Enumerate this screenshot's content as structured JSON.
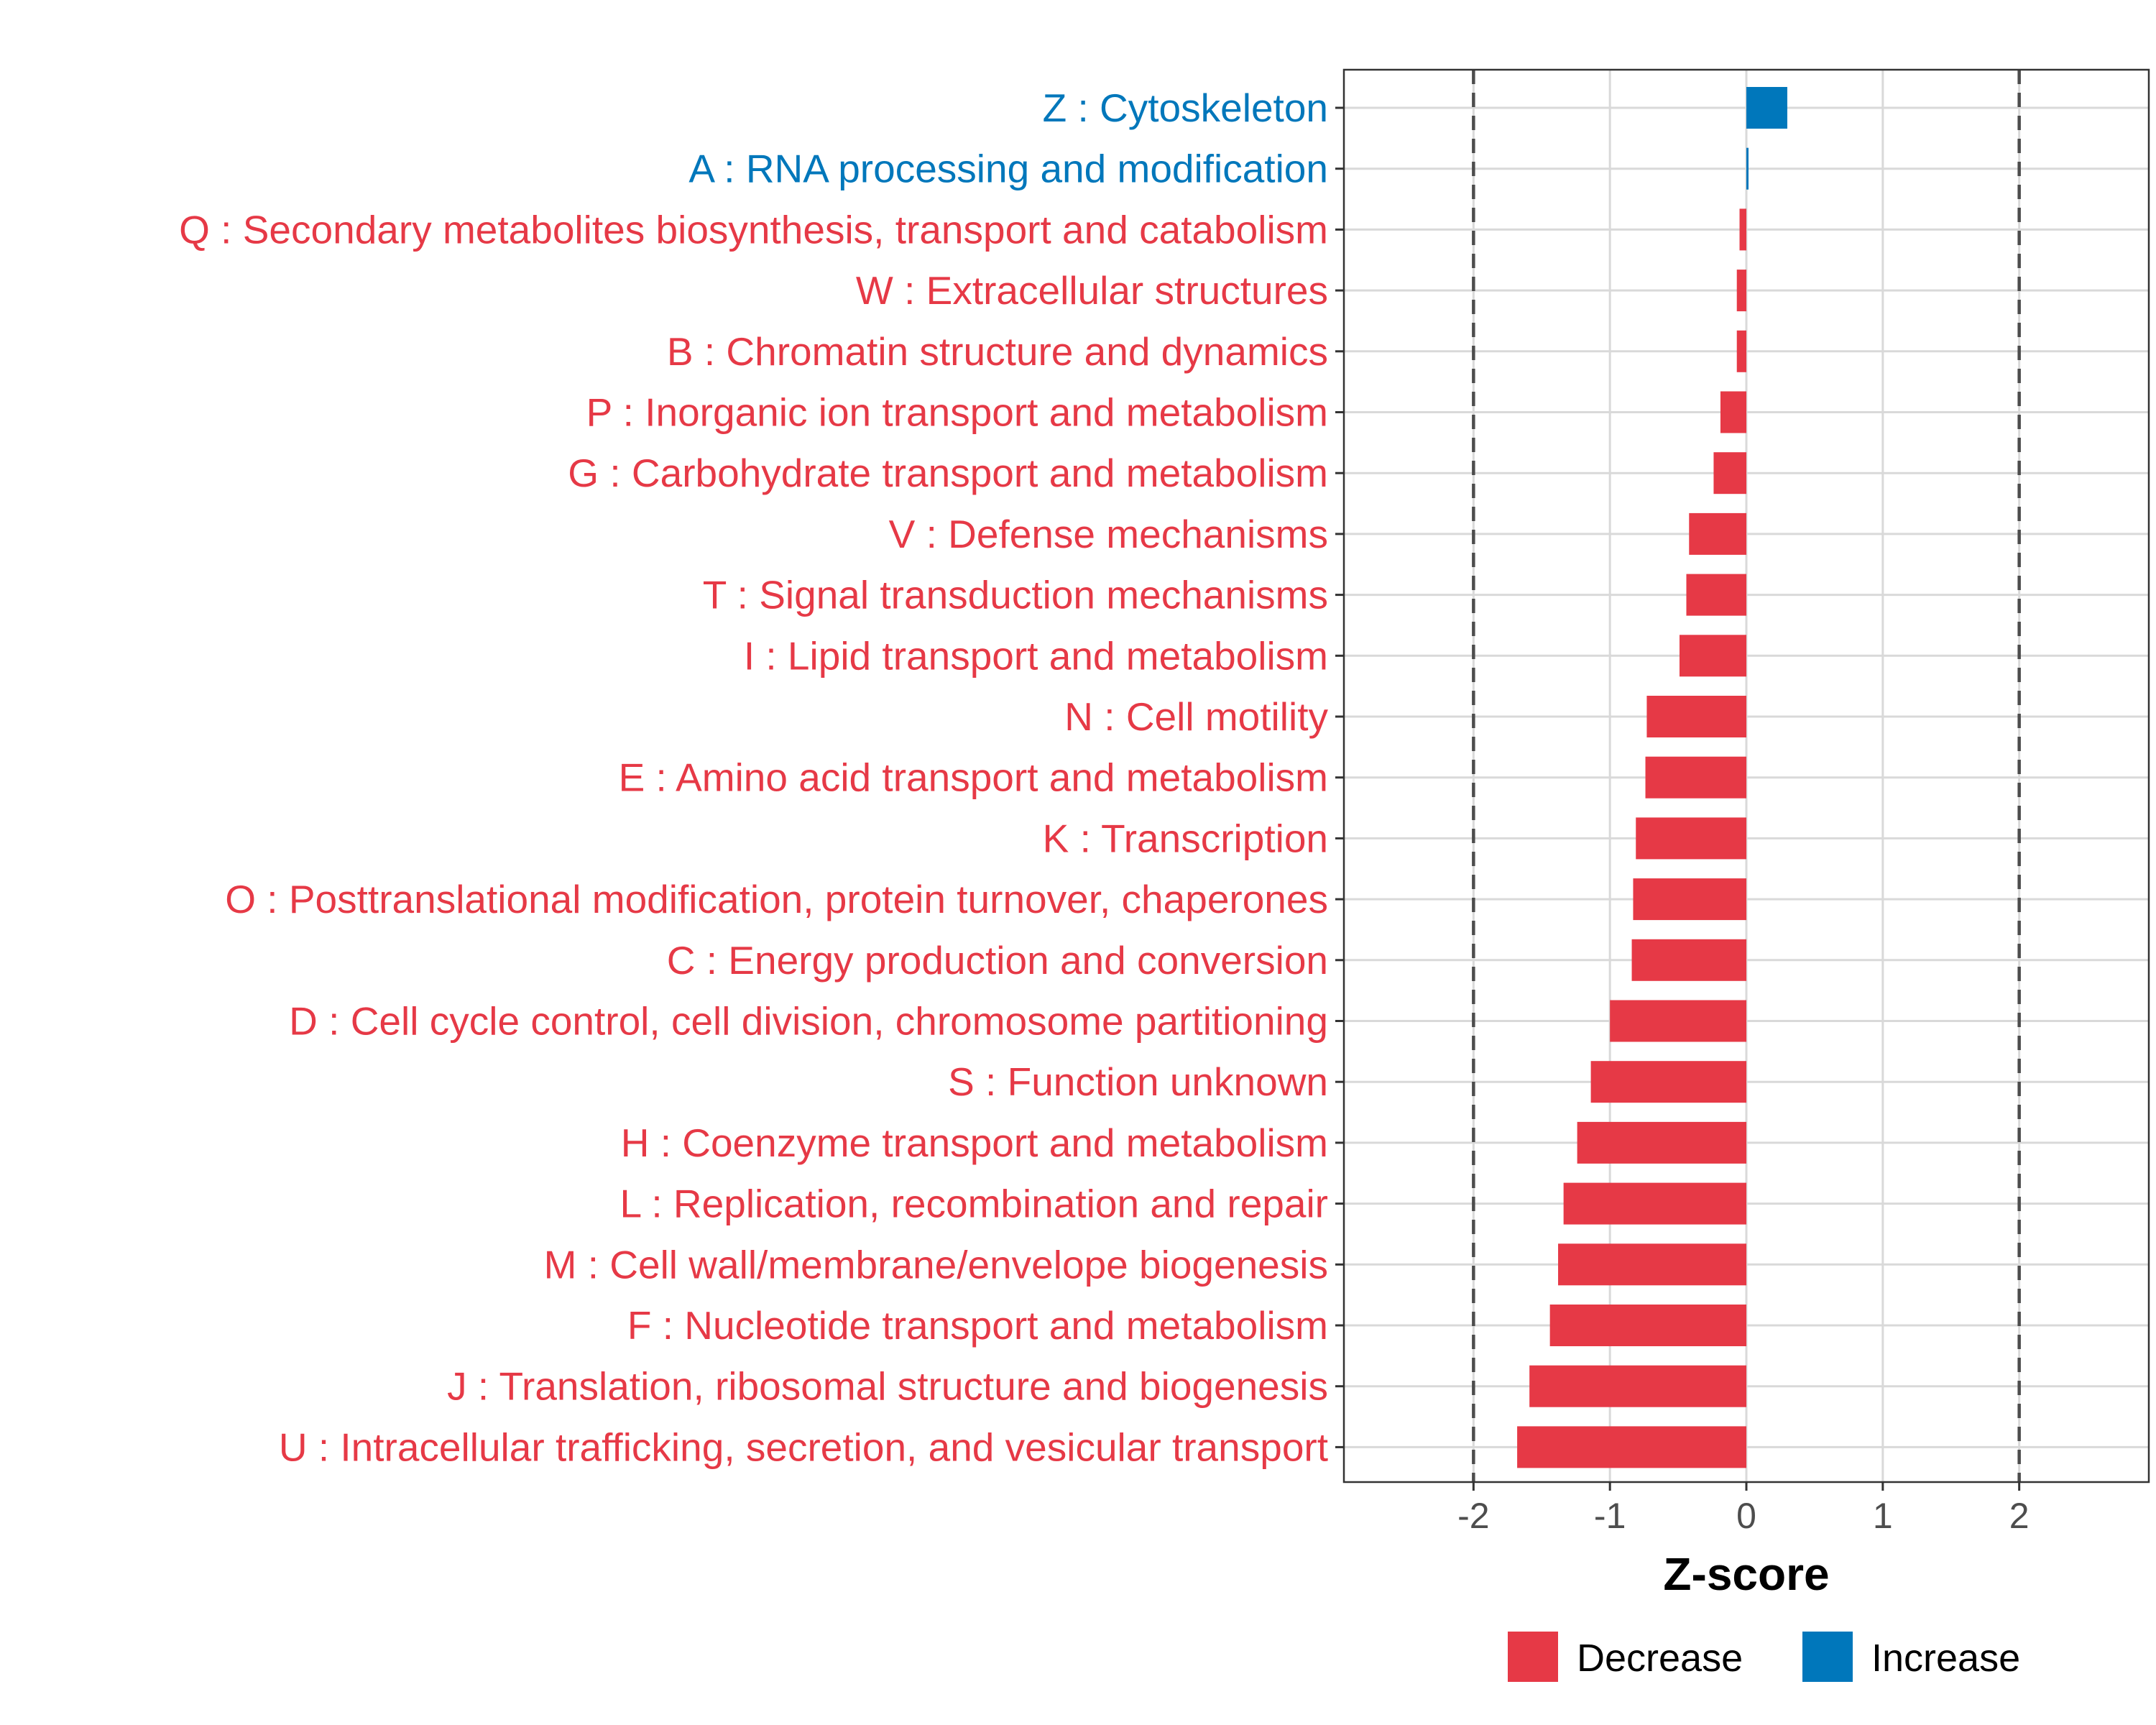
{
  "chart_data": {
    "type": "bar",
    "orientation": "horizontal",
    "title": "",
    "xlabel": "Z-score",
    "ylabel": "",
    "xlim": [
      -2.95,
      2.95
    ],
    "xticks": [
      -2,
      -1,
      0,
      1,
      2
    ],
    "tick_labels": [
      "-2",
      "-1",
      "0",
      "1",
      "2"
    ],
    "reference_lines": [
      -2,
      2
    ],
    "grid": true,
    "colors": {
      "Decrease": "#e63946",
      "Increase": "#0077bb",
      "frame": "#333333",
      "grid": "#d9d9d9",
      "refline": "#4d4d4d"
    },
    "categories": [
      "Z : Cytoskeleton",
      "A : RNA processing and modification",
      "Q : Secondary metabolites biosynthesis, transport and catabolism",
      "W : Extracellular structures",
      "B : Chromatin structure and dynamics",
      "P : Inorganic ion transport and metabolism",
      "G : Carbohydrate transport and metabolism",
      "V : Defense mechanisms",
      "T : Signal transduction mechanisms",
      "I : Lipid transport and metabolism",
      "N : Cell motility",
      "E : Amino acid transport and metabolism",
      "K : Transcription",
      "O : Posttranslational modification, protein turnover, chaperones",
      "C : Energy production and conversion",
      "D : Cell cycle control, cell division, chromosome partitioning",
      "S : Function unknown",
      "H : Coenzyme transport and metabolism",
      "L : Replication, recombination and repair",
      "M : Cell wall/membrane/envelope biogenesis",
      "F : Nucleotide transport and metabolism",
      "J : Translation, ribosomal structure and biogenesis",
      "U : Intracellular trafficking, secretion, and vesicular transport"
    ],
    "values": [
      0.3,
      0.01,
      -0.05,
      -0.07,
      -0.07,
      -0.19,
      -0.24,
      -0.42,
      -0.44,
      -0.49,
      -0.73,
      -0.74,
      -0.81,
      -0.83,
      -0.84,
      -1.0,
      -1.14,
      -1.24,
      -1.34,
      -1.38,
      -1.44,
      -1.59,
      -1.68
    ],
    "groups": [
      "Increase",
      "Increase",
      "Decrease",
      "Decrease",
      "Decrease",
      "Decrease",
      "Decrease",
      "Decrease",
      "Decrease",
      "Decrease",
      "Decrease",
      "Decrease",
      "Decrease",
      "Decrease",
      "Decrease",
      "Decrease",
      "Decrease",
      "Decrease",
      "Decrease",
      "Decrease",
      "Decrease",
      "Decrease",
      "Decrease"
    ],
    "legend": {
      "position": "bottom",
      "entries": [
        {
          "label": "Decrease",
          "color": "#e63946"
        },
        {
          "label": "Increase",
          "color": "#0077bb"
        }
      ]
    }
  }
}
